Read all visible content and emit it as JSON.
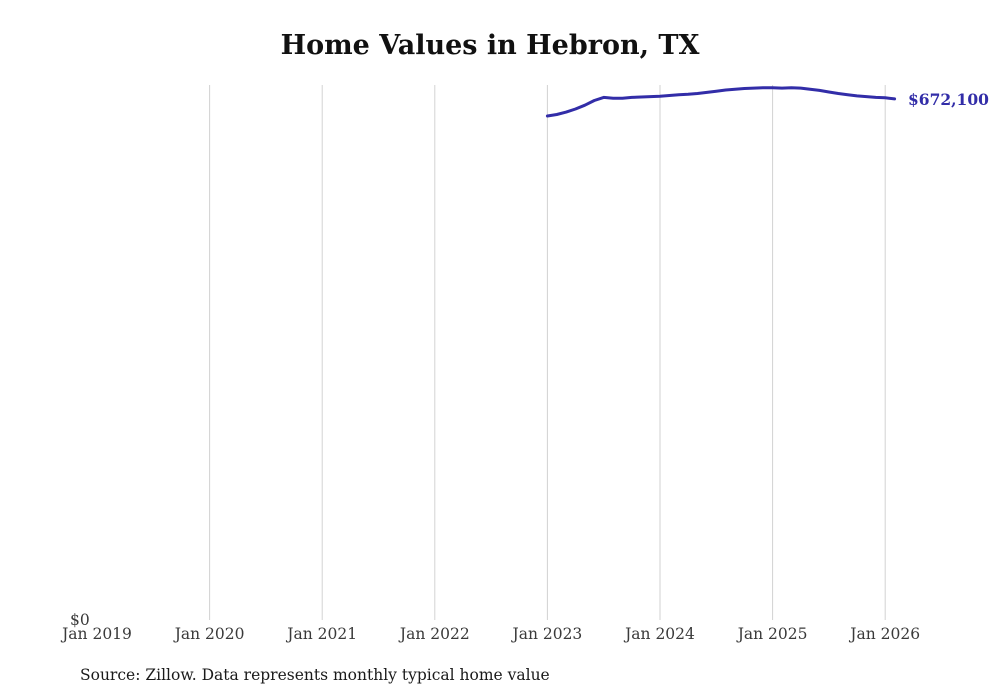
{
  "title": "Home Values in Hebron, TX",
  "source_note": "Source: Zillow. Data represents monthly typical home value",
  "end_label": "$672,100",
  "y_zero_label": "$0",
  "colors": {
    "line": "#322da8",
    "grid": "#d2d2d2"
  },
  "chart_data": {
    "type": "line",
    "title": "Home Values in Hebron, TX",
    "xlabel": "",
    "ylabel": "",
    "ylim": [
      0,
      690000
    ],
    "grid": "vertical-only",
    "legend": false,
    "x_ticks": [
      {
        "label": "Jan 2019",
        "grid": false
      },
      {
        "label": "Jan 2020",
        "grid": true
      },
      {
        "label": "Jan 2021",
        "grid": true
      },
      {
        "label": "Jan 2022",
        "grid": true
      },
      {
        "label": "Jan 2023",
        "grid": true
      },
      {
        "label": "Jan 2024",
        "grid": true
      },
      {
        "label": "Jan 2025",
        "grid": true
      },
      {
        "label": "Jan 2026",
        "grid": true
      }
    ],
    "series": [
      {
        "name": "Monthly typical home value",
        "x": [
          "2023-01",
          "2023-02",
          "2023-03",
          "2023-04",
          "2023-05",
          "2023-06",
          "2023-07",
          "2023-08",
          "2023-09",
          "2023-10",
          "2023-11",
          "2023-12",
          "2024-01",
          "2024-02",
          "2024-03",
          "2024-04",
          "2024-05",
          "2024-06",
          "2024-07",
          "2024-08",
          "2024-09",
          "2024-10",
          "2024-11",
          "2024-12",
          "2025-01",
          "2025-02",
          "2025-03",
          "2025-04",
          "2025-05",
          "2025-06",
          "2025-07",
          "2025-08",
          "2025-09",
          "2025-10",
          "2025-11",
          "2025-12",
          "2026-01",
          "2026-02"
        ],
        "values": [
          650000,
          652000,
          655000,
          659000,
          664000,
          670000,
          674000,
          673000,
          673000,
          674000,
          674500,
          675000,
          675500,
          676500,
          677500,
          678000,
          679000,
          680500,
          682000,
          683500,
          684500,
          685500,
          686000,
          686500,
          686500,
          686000,
          686500,
          686000,
          684500,
          683000,
          681000,
          679000,
          677500,
          676000,
          675000,
          674000,
          673500,
          672100
        ]
      }
    ],
    "annotations": [
      {
        "text": "$672,100",
        "x": "2026-02",
        "y": 672100
      }
    ]
  }
}
